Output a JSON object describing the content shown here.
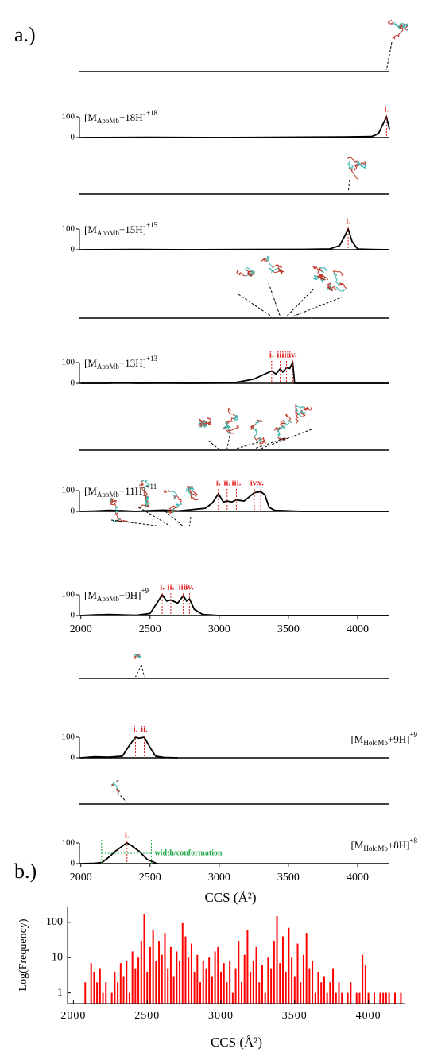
{
  "labels": [
    "a.)",
    "b.)"
  ],
  "chart_data": [
    {
      "type": "line",
      "ion_label": {
        "prefix": "[M",
        "sub": "ApoMb",
        "main": "+18H]",
        "sup": "+18"
      },
      "color": "#000000",
      "annotation_color": "#e02020",
      "x": [
        2000,
        2500,
        3000,
        3500,
        3900,
        4100,
        4150,
        4180,
        4209,
        4230
      ],
      "values": [
        0,
        1,
        0,
        2,
        3,
        5,
        18,
        60,
        100,
        40
      ],
      "xlim": [
        1990,
        4230
      ],
      "ylim": [
        0,
        100
      ],
      "yticks": [
        0,
        100
      ],
      "annotations": [
        "i."
      ],
      "annotation_x": [
        4209
      ]
    },
    {
      "type": "line",
      "ion_label": {
        "prefix": "[M",
        "sub": "ApoMb",
        "main": "+15H]",
        "sup": "+15"
      },
      "color": "#000000",
      "annotation_color": "#e02020",
      "x": [
        2000,
        2400,
        2800,
        3200,
        3600,
        3800,
        3870,
        3910,
        3932,
        3960,
        4000,
        4100,
        4230
      ],
      "values": [
        0,
        1,
        0,
        1,
        2,
        4,
        20,
        70,
        100,
        40,
        3,
        1,
        0
      ],
      "xlim": [
        1990,
        4230
      ],
      "ylim": [
        0,
        100
      ],
      "yticks": [
        0,
        100
      ],
      "annotations": [
        "i."
      ],
      "annotation_x": [
        3932
      ]
    },
    {
      "type": "line",
      "ion_label": {
        "prefix": "[M",
        "sub": "ApoMb",
        "main": "+13H]",
        "sup": "+13"
      },
      "color": "#000000",
      "annotation_color": "#e02020",
      "x": [
        2000,
        2200,
        2300,
        2400,
        2600,
        2800,
        3100,
        3250,
        3379,
        3410,
        3441,
        3460,
        3486,
        3510,
        3531,
        3545,
        3600,
        3800,
        4230
      ],
      "values": [
        0,
        0,
        4,
        0,
        1,
        0,
        2,
        20,
        60,
        45,
        70,
        55,
        75,
        72,
        100,
        0,
        0,
        0,
        0
      ],
      "xlim": [
        1990,
        4230
      ],
      "ylim": [
        0,
        100
      ],
      "yticks": [
        0,
        100
      ],
      "annotations": [
        "i.",
        "ii.",
        "iii.",
        "iv."
      ],
      "annotation_x": [
        3379,
        3441,
        3486,
        3531
      ]
    },
    {
      "type": "line",
      "ion_label": {
        "prefix": "[M",
        "sub": "ApoMb",
        "main": "+11H]",
        "sup": "+11"
      },
      "color": "#000000",
      "annotation_color": "#e02020",
      "x": [
        2000,
        2100,
        2200,
        2300,
        2400,
        2500,
        2600,
        2700,
        2800,
        2900,
        2950,
        2994,
        3030,
        3057,
        3090,
        3124,
        3180,
        3254,
        3300,
        3330,
        3360,
        3400,
        3600,
        4230
      ],
      "values": [
        0,
        2,
        5,
        3,
        0,
        4,
        6,
        2,
        8,
        15,
        40,
        85,
        45,
        50,
        45,
        55,
        50,
        90,
        95,
        80,
        20,
        5,
        0,
        0
      ],
      "xlim": [
        1990,
        4230
      ],
      "ylim": [
        0,
        100
      ],
      "yticks": [
        0,
        100
      ],
      "annotations": [
        "i.",
        "ii.",
        "iii.",
        "iv.",
        "v."
      ],
      "annotation_x": [
        2994,
        3057,
        3124,
        3254,
        3300
      ]
    },
    {
      "type": "line",
      "ion_label": {
        "prefix": "[M",
        "sub": "ApoMb",
        "main": "+9H]",
        "sup": "+9"
      },
      "color": "#000000",
      "annotation_color": "#e02020",
      "x": [
        2000,
        2100,
        2200,
        2300,
        2400,
        2500,
        2550,
        2588,
        2620,
        2650,
        2700,
        2740,
        2765,
        2785,
        2820,
        2880,
        3000,
        4230
      ],
      "values": [
        0,
        3,
        5,
        3,
        1,
        10,
        60,
        100,
        70,
        75,
        60,
        95,
        70,
        80,
        30,
        5,
        0,
        0
      ],
      "xlim": [
        1990,
        4230
      ],
      "ylim": [
        0,
        100
      ],
      "yticks": [
        0,
        100
      ],
      "xticks": [
        2000,
        2500,
        3000,
        3500,
        4000
      ],
      "annotations": [
        "i.",
        "ii.",
        "iii.",
        "iv."
      ],
      "annotation_x": [
        2588,
        2650,
        2740,
        2785
      ]
    },
    {
      "type": "line",
      "ion_label": {
        "prefix": "[M",
        "sub": "HoloMb",
        "main": "+9H]",
        "sup": "+9"
      },
      "color": "#000000",
      "annotation_color": "#e02020",
      "x": [
        2000,
        2100,
        2200,
        2300,
        2350,
        2395,
        2420,
        2458,
        2500,
        2540,
        2600,
        2700
      ],
      "values": [
        0,
        5,
        3,
        8,
        60,
        100,
        95,
        100,
        50,
        8,
        2,
        0
      ],
      "xlim": [
        1990,
        4230
      ],
      "ylim": [
        0,
        100
      ],
      "yticks": [
        0,
        100
      ],
      "annotations": [
        "i.",
        "ii."
      ],
      "annotation_x": [
        2395,
        2458
      ]
    },
    {
      "type": "line",
      "ion_label": {
        "prefix": "[M",
        "sub": "HoloMb",
        "main": "+8H]",
        "sup": "+8"
      },
      "color": "#000000",
      "annotation_color": "#e02020",
      "x": [
        2000,
        2100,
        2150,
        2200,
        2250,
        2300,
        2333,
        2370,
        2420,
        2480,
        2550
      ],
      "values": [
        0,
        2,
        5,
        30,
        60,
        85,
        100,
        85,
        60,
        20,
        0
      ],
      "xlim": [
        1990,
        4230
      ],
      "ylim": [
        0,
        100
      ],
      "yticks": [
        0,
        100
      ],
      "xticks": [
        2000,
        2500,
        3000,
        3500,
        4000
      ],
      "annotations": [
        "i."
      ],
      "annotation_x": [
        2333
      ],
      "width_label": "width/conformation",
      "width_x": [
        2150,
        2510
      ],
      "width_color": "#22a84a",
      "xlabel": "CCS (Å²)"
    },
    {
      "type": "bar",
      "color": "#ff0000",
      "log_y": true,
      "ylabel": "Log(Frequency)",
      "xlabel": "CCS (Å²)",
      "xlim": [
        1960,
        4250
      ],
      "ylim": [
        0.5,
        280
      ],
      "xticks": [
        2000,
        2500,
        3000,
        3500,
        4000
      ],
      "yticks": [
        1,
        10,
        100
      ],
      "x": [
        2080,
        2120,
        2140,
        2160,
        2180,
        2200,
        2220,
        2260,
        2280,
        2300,
        2320,
        2340,
        2360,
        2380,
        2400,
        2420,
        2440,
        2460,
        2480,
        2500,
        2520,
        2540,
        2560,
        2580,
        2600,
        2620,
        2640,
        2660,
        2680,
        2700,
        2720,
        2740,
        2760,
        2780,
        2800,
        2820,
        2840,
        2860,
        2880,
        2900,
        2920,
        2940,
        2960,
        2980,
        3000,
        3020,
        3040,
        3060,
        3080,
        3100,
        3120,
        3140,
        3160,
        3180,
        3200,
        3220,
        3240,
        3260,
        3280,
        3300,
        3320,
        3340,
        3360,
        3380,
        3400,
        3420,
        3440,
        3460,
        3480,
        3500,
        3520,
        3540,
        3560,
        3580,
        3600,
        3620,
        3640,
        3660,
        3680,
        3700,
        3720,
        3740,
        3760,
        3780,
        3800,
        3820,
        3860,
        3880,
        3920,
        3940,
        3960,
        3980,
        4000,
        4040,
        4080,
        4100,
        4120,
        4140,
        4180,
        4220
      ],
      "values": [
        2,
        7,
        4,
        2,
        5,
        1,
        2,
        1,
        4,
        2,
        7,
        3,
        8,
        1,
        15,
        5,
        10,
        30,
        170,
        4,
        20,
        60,
        8,
        30,
        12,
        50,
        5,
        20,
        3,
        15,
        8,
        95,
        40,
        10,
        25,
        4,
        12,
        2,
        8,
        5,
        10,
        3,
        15,
        20,
        4,
        7,
        2,
        8,
        1,
        5,
        30,
        2,
        12,
        60,
        4,
        8,
        20,
        2,
        6,
        1,
        10,
        5,
        30,
        150,
        7,
        40,
        4,
        70,
        10,
        3,
        25,
        2,
        12,
        50,
        5,
        8,
        1,
        4,
        2,
        3,
        1,
        2,
        5,
        1,
        2,
        1,
        1,
        2,
        1,
        1,
        12,
        6,
        1,
        1,
        1,
        1,
        1,
        1,
        1,
        1
      ]
    }
  ]
}
